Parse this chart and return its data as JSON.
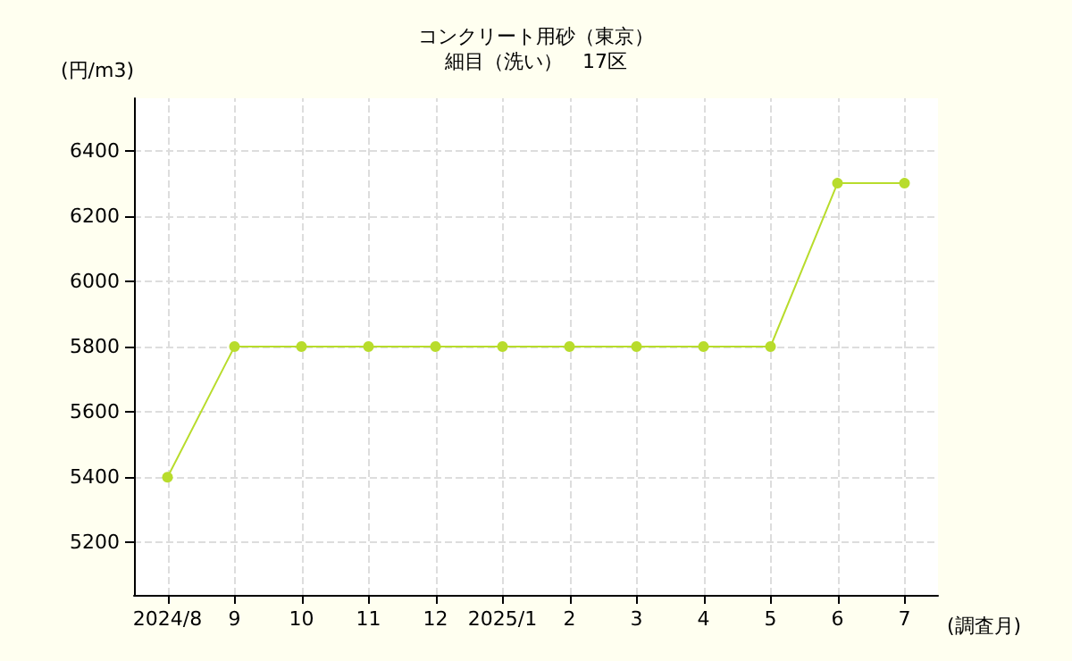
{
  "chart_data": {
    "type": "line",
    "title": "コンクリート用砂（東京）",
    "subtitle": "細目（洗い）　17区",
    "ylabel": "(円/m3)",
    "xlabel": "(調査月)",
    "categories": [
      "2024/8",
      "9",
      "10",
      "11",
      "12",
      "2025/1",
      "2",
      "3",
      "4",
      "5",
      "6",
      "7"
    ],
    "series": [
      {
        "color": "#b8dc2c",
        "values": [
          5400,
          5800,
          5800,
          5800,
          5800,
          5800,
          5800,
          5800,
          5800,
          5800,
          6300,
          6300
        ]
      }
    ],
    "ylim": [
      5040,
      6560
    ],
    "yticks": [
      5200,
      5400,
      5600,
      5800,
      6000,
      6200,
      6400
    ],
    "grid": true,
    "marker": "circle",
    "line_style": "solid"
  }
}
